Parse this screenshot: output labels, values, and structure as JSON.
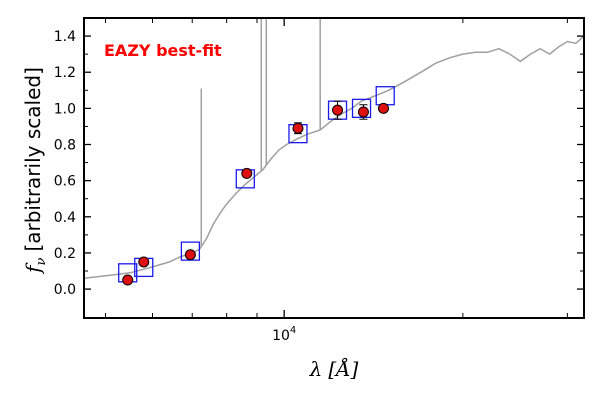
{
  "chart_data": {
    "type": "scatter",
    "annotation": "EAZY best-fit",
    "annotation_color": "#ff0000",
    "xlabel_symbol": "λ",
    "xlabel_unit": "[Å]",
    "ylabel_symbol": "f",
    "ylabel_subscript": "ν",
    "ylabel_text": "[arbitrarily scaled]",
    "x_scale": "log",
    "xlim": [
      4600,
      32000
    ],
    "ylim": [
      -0.16,
      1.5
    ],
    "grid": false,
    "y_ticks": [
      {
        "value": 0.0,
        "label": "0.0"
      },
      {
        "value": 0.2,
        "label": "0.2"
      },
      {
        "value": 0.4,
        "label": "0.4"
      },
      {
        "value": 0.6,
        "label": "0.6"
      },
      {
        "value": 0.8,
        "label": "0.8"
      },
      {
        "value": 1.0,
        "label": "1.0"
      },
      {
        "value": 1.2,
        "label": "1.2"
      },
      {
        "value": 1.4,
        "label": "1.4"
      }
    ],
    "x_major_ticks": [
      {
        "value": 10000,
        "base": "10",
        "exponent": "4"
      }
    ],
    "x_minor_ticks": [
      5000,
      6000,
      7000,
      8000,
      9000,
      20000,
      30000
    ],
    "colors": {
      "observed": "#dd1111",
      "model_photometry": "#1a1aee",
      "template": "#a0a0a0"
    },
    "series": [
      {
        "role": "observed",
        "points": [
          {
            "x": 5450,
            "y": 0.05,
            "yerr": 0.0
          },
          {
            "x": 5800,
            "y": 0.15,
            "yerr": 0.0
          },
          {
            "x": 6950,
            "y": 0.19,
            "yerr": 0.0
          },
          {
            "x": 8650,
            "y": 0.64,
            "yerr": 0.0
          },
          {
            "x": 10550,
            "y": 0.89,
            "yerr": 0.03
          },
          {
            "x": 12300,
            "y": 0.99,
            "yerr": 0.05
          },
          {
            "x": 13600,
            "y": 0.98,
            "yerr": 0.04
          },
          {
            "x": 14700,
            "y": 1.0,
            "yerr": 0.0
          }
        ]
      },
      {
        "role": "model_photometry",
        "points": [
          {
            "x": 5450,
            "y": 0.09
          },
          {
            "x": 5800,
            "y": 0.12
          },
          {
            "x": 6950,
            "y": 0.21
          },
          {
            "x": 8600,
            "y": 0.61
          },
          {
            "x": 10550,
            "y": 0.86
          },
          {
            "x": 12300,
            "y": 0.99
          },
          {
            "x": 13500,
            "y": 1.0
          },
          {
            "x": 14800,
            "y": 1.07
          }
        ]
      },
      {
        "role": "template",
        "points": [
          [
            4600,
            0.06
          ],
          [
            4900,
            0.07
          ],
          [
            5200,
            0.08
          ],
          [
            5500,
            0.09
          ],
          [
            5800,
            0.11
          ],
          [
            6100,
            0.13
          ],
          [
            6400,
            0.15
          ],
          [
            6700,
            0.18
          ],
          [
            7000,
            0.2
          ],
          [
            7200,
            0.22
          ],
          [
            7400,
            0.28
          ],
          [
            7600,
            0.36
          ],
          [
            7800,
            0.42
          ],
          [
            8000,
            0.47
          ],
          [
            8300,
            0.53
          ],
          [
            8600,
            0.58
          ],
          [
            8900,
            0.62
          ],
          [
            9200,
            0.66
          ],
          [
            9500,
            0.72
          ],
          [
            9800,
            0.77
          ],
          [
            10100,
            0.8
          ],
          [
            10500,
            0.83
          ],
          [
            11000,
            0.86
          ],
          [
            11500,
            0.88
          ],
          [
            12000,
            0.93
          ],
          [
            12500,
            0.97
          ],
          [
            13000,
            1.0
          ],
          [
            13500,
            1.04
          ],
          [
            14000,
            1.06
          ],
          [
            15000,
            1.1
          ],
          [
            16000,
            1.15
          ],
          [
            17000,
            1.2
          ],
          [
            18000,
            1.25
          ],
          [
            19000,
            1.28
          ],
          [
            20000,
            1.3
          ],
          [
            21000,
            1.31
          ],
          [
            22000,
            1.31
          ],
          [
            23000,
            1.33
          ],
          [
            24000,
            1.3
          ],
          [
            25000,
            1.26
          ],
          [
            26000,
            1.3
          ],
          [
            27000,
            1.33
          ],
          [
            28000,
            1.3
          ],
          [
            29000,
            1.34
          ],
          [
            30000,
            1.37
          ],
          [
            31000,
            1.36
          ],
          [
            32000,
            1.4
          ]
        ],
        "emission_lines": [
          {
            "x": 7250,
            "y": 1.11
          },
          {
            "x": 9150,
            "y": 1.5
          },
          {
            "x": 9330,
            "y": 1.5
          },
          {
            "x": 11500,
            "y": 1.5
          }
        ]
      }
    ]
  }
}
